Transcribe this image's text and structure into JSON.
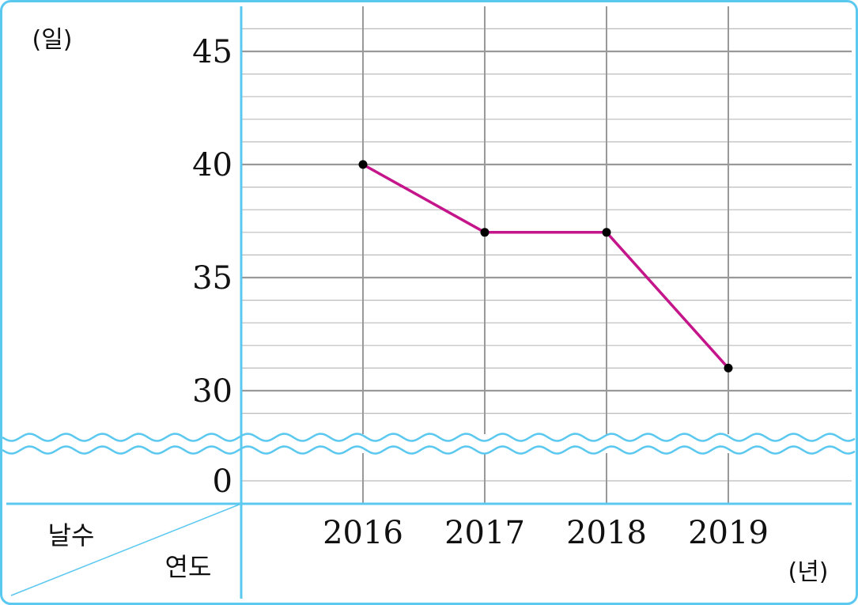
{
  "chart_data": {
    "type": "line",
    "categories": [
      "2016",
      "2017",
      "2018",
      "2019"
    ],
    "series": [
      {
        "values": [
          40,
          37,
          37,
          31
        ],
        "color": "#c4158b"
      }
    ],
    "y_ticks": [
      "0",
      "30",
      "35",
      "40",
      "45"
    ],
    "y_axis_break": "between 0 and 30",
    "ylim": [
      0,
      47
    ],
    "grid": true,
    "y_unit": "(일)",
    "x_unit": "(년)",
    "header_row_label": "날수",
    "header_col_label": "연도",
    "colors": {
      "frame": "#5bc8f0",
      "grid": "#999999",
      "line": "#c4158b",
      "marker": "#000000"
    }
  }
}
